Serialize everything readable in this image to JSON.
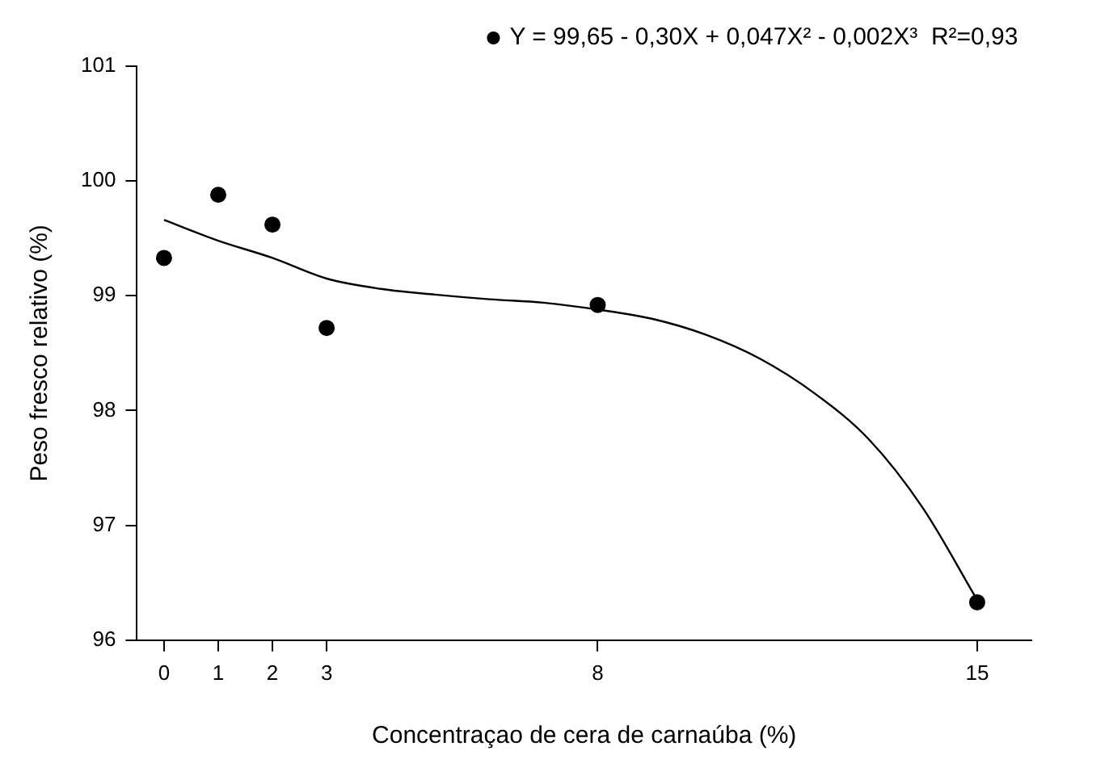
{
  "chart_data": {
    "type": "scatter",
    "xlabel": "Concentraçao de cera de carnaúba (%)",
    "ylabel": "Peso fresco relativo (%)",
    "x": [
      0,
      1,
      2,
      3,
      8,
      15
    ],
    "series": [
      {
        "name": "Y = 99,65 - 0,30X + 0,047X² - 0,002X³  R²=0,93",
        "type": "scatter",
        "marker": "circle",
        "color": "#000000",
        "values": [
          99.33,
          99.88,
          99.62,
          98.72,
          98.92,
          96.33
        ]
      },
      {
        "type": "line",
        "marker": "none",
        "color": "#000000",
        "x": [
          0,
          1,
          2,
          3,
          4,
          5,
          6,
          7,
          8,
          9,
          10,
          11,
          12,
          13,
          14,
          15
        ],
        "values": [
          99.66,
          99.48,
          99.33,
          99.15,
          99.06,
          99.01,
          98.97,
          98.94,
          98.88,
          98.8,
          98.66,
          98.45,
          98.15,
          97.75,
          97.15,
          96.35
        ]
      }
    ],
    "xlim": [
      -0.5,
      16
    ],
    "xticks": [
      0,
      1,
      2,
      3,
      8,
      15
    ],
    "ylim": [
      96,
      101
    ],
    "yticks": [
      96,
      97,
      98,
      99,
      100,
      101
    ],
    "grid": false,
    "legend": "top right"
  }
}
